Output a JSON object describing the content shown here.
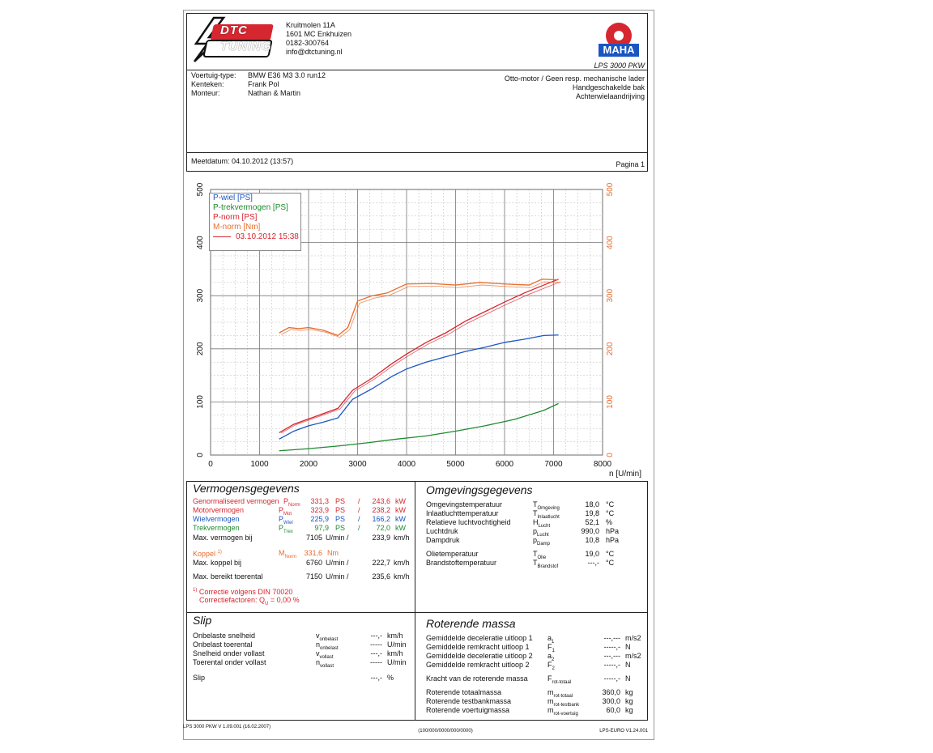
{
  "header": {
    "logo_text": "DTC TUNING",
    "address_lines": [
      "Kruitmolen 11A",
      "1601 MC Enkhuizen",
      "0182-300764",
      "info@dtctuning.nl"
    ],
    "maha_logo_text": "MAHA",
    "model": "LPS 3000 PKW"
  },
  "vehicle": {
    "type_label": "Voertuig-type:",
    "type_value": "BMW E36 M3 3.0 run12",
    "plate_label": "Kenteken:",
    "plate_value": "Frank Pol",
    "mechanic_label": "Monteur:",
    "mechanic_value": "Nathan & Martin",
    "right_lines": [
      "Otto-motor / Geen resp. mechanische lader",
      "Handgeschakelde bak",
      "Achterwielaandrijving"
    ]
  },
  "measure": {
    "date_label": "Meetdatum: 04.10.2012 (13:57)",
    "page_label": "Pagina 1"
  },
  "chart_data": {
    "type": "line",
    "xlabel": "n [U/min]",
    "xlim": [
      0,
      8000
    ],
    "ylim": [
      0,
      500
    ],
    "x_ticks": [
      0,
      1000,
      2000,
      3000,
      4000,
      5000,
      6000,
      7000,
      8000
    ],
    "y_ticks": [
      0,
      100,
      200,
      300,
      400,
      500
    ],
    "grid": true,
    "legend_placement": "top-left",
    "legend": [
      "P-wiel [PS]",
      "P-trekvermogen [PS]",
      "P-norm [PS]",
      "M-norm [Nm]"
    ],
    "legend_date": "03.10.2012 15:38",
    "series": [
      {
        "name": "P-wiel [PS]",
        "color": "#1a56c2",
        "x": [
          1400,
          1700,
          2000,
          2300,
          2600,
          2900,
          3300,
          3700,
          4000,
          4400,
          4800,
          5200,
          5600,
          6000,
          6400,
          6800,
          7100
        ],
        "values": [
          30,
          45,
          55,
          62,
          70,
          105,
          125,
          148,
          162,
          175,
          185,
          195,
          203,
          212,
          218,
          225,
          226
        ]
      },
      {
        "name": "P-trekvermogen [PS]",
        "color": "#1f8a2e",
        "x": [
          1400,
          2000,
          2600,
          3200,
          3800,
          4400,
          5000,
          5600,
          6200,
          6800,
          7100
        ],
        "values": [
          8,
          12,
          17,
          23,
          30,
          36,
          45,
          55,
          67,
          84,
          97
        ]
      },
      {
        "name": "P-norm [PS]",
        "color": "#d6262f",
        "x": [
          1400,
          1700,
          2000,
          2300,
          2600,
          2900,
          3300,
          3700,
          4000,
          4400,
          4800,
          5200,
          5600,
          6000,
          6400,
          6800,
          7100
        ],
        "values": [
          42,
          58,
          68,
          78,
          88,
          122,
          145,
          172,
          190,
          212,
          230,
          252,
          270,
          288,
          305,
          320,
          331
        ]
      },
      {
        "name": "M-norm [Nm]",
        "color": "#e86b2c",
        "x": [
          1400,
          1600,
          1800,
          2000,
          2300,
          2600,
          2800,
          3000,
          3300,
          3600,
          4000,
          4500,
          5000,
          5500,
          6000,
          6500,
          6760,
          7100
        ],
        "values": [
          230,
          240,
          238,
          240,
          235,
          225,
          240,
          290,
          300,
          305,
          322,
          323,
          320,
          325,
          322,
          320,
          331,
          330
        ]
      }
    ]
  },
  "vermogen": {
    "title": "Vermogensgegevens",
    "rows": [
      {
        "label": "Genormaliseerd vermogen",
        "sym": "P",
        "sub": "Norm",
        "v1": "331,3",
        "u1": "PS",
        "sep": "/",
        "v2": "243,6",
        "u2": "kW",
        "cls": "red"
      },
      {
        "label": "Motorvermogen",
        "sym": "P",
        "sub": "Mot",
        "v1": "323,9",
        "u1": "PS",
        "sep": "/",
        "v2": "238,2",
        "u2": "kW",
        "cls": "red"
      },
      {
        "label": "Wielvermogen",
        "sym": "P",
        "sub": "Wiel",
        "v1": "225,9",
        "u1": "PS",
        "sep": "/",
        "v2": "166,2",
        "u2": "kW",
        "cls": "blue"
      },
      {
        "label": "Trekvermogen",
        "sym": "P",
        "sub": "Trex",
        "v1": "97,9",
        "u1": "PS",
        "sep": "/",
        "v2": "72,0",
        "u2": "kW",
        "cls": "green"
      }
    ],
    "max_power_at": {
      "label": "Max. vermogen bij",
      "v1": "7105",
      "u1": "U/min /",
      "v2": "233,9",
      "u2": "km/h"
    },
    "koppel": {
      "label": "Koppel",
      "note": "1)",
      "sym": "M",
      "sub": "Norm",
      "v": "331,6",
      "u": "Nm"
    },
    "max_torque_at": {
      "label": "Max. koppel bij",
      "v1": "6760",
      "u1": "U/min /",
      "v2": "222,7",
      "u2": "km/h"
    },
    "max_rpm": {
      "label": "Max. bereikt toerental",
      "v1": "7150",
      "u1": "U/min /",
      "v2": "235,6",
      "u2": "km/h"
    },
    "correction_note": "1)",
    "correction": "Correctie volgens DIN 70020",
    "factor_label": "Correctiefactoren: Q",
    "factor_sub": "U",
    "factor_value": "= 0,00 %"
  },
  "omgeving": {
    "title": "Omgevingsgegevens",
    "rows": [
      {
        "label": "Omgevingstemperatuur",
        "sym": "T",
        "sub": "Omgeving",
        "v": "18,0",
        "u": "°C"
      },
      {
        "label": "Inlaatluchttemperatuur",
        "sym": "T",
        "sub": "Inlaatlucht",
        "v": "19,8",
        "u": "°C"
      },
      {
        "label": "Relatieve luchtvochtigheid",
        "sym": "H",
        "sub": "Lucht",
        "v": "52,1",
        "u": "%"
      },
      {
        "label": "Luchtdruk",
        "sym": "p",
        "sub": "Lucht",
        "v": "990,0",
        "u": "hPa"
      },
      {
        "label": "Dampdruk",
        "sym": "p",
        "sub": "Damp",
        "v": "10,8",
        "u": "hPa"
      },
      {
        "label": "Olietemperatuur",
        "sym": "T",
        "sub": "Olie",
        "v": "19,0",
        "u": "°C"
      },
      {
        "label": "Brandstoftemperatuur",
        "sym": "T",
        "sub": "Brandstof",
        "v": "---,-",
        "u": "°C"
      }
    ]
  },
  "slip": {
    "title": "Slip",
    "rows": [
      {
        "label": "Onbelaste snelheid",
        "sym": "v",
        "sub": "onbelast",
        "v": "---,-",
        "u": "km/h"
      },
      {
        "label": "Onbelast toerental",
        "sym": "n",
        "sub": "onbelast",
        "v": "-----",
        "u": "U/min"
      },
      {
        "label": "Snelheid onder vollast",
        "sym": "v",
        "sub": "vollast",
        "v": "---,-",
        "u": "km/h"
      },
      {
        "label": "Toerental onder vollast",
        "sym": "n",
        "sub": "vollast",
        "v": "-----",
        "u": "U/min"
      },
      {
        "label": "Slip",
        "sym": "",
        "sub": "",
        "v": "---,-",
        "u": "%"
      }
    ]
  },
  "massa": {
    "title": "Roterende massa",
    "rows": [
      {
        "label": "Gemiddelde deceleratie uitloop 1",
        "sym": "a",
        "sub": "1",
        "v": "---,---",
        "u": "m/s2"
      },
      {
        "label": "Gemiddelde remkracht uitloop 1",
        "sym": "F",
        "sub": "1",
        "v": "-----,-",
        "u": "N"
      },
      {
        "label": "Gemiddelde deceleratie uitloop 2",
        "sym": "a",
        "sub": "2",
        "v": "---,---",
        "u": "m/s2"
      },
      {
        "label": "Gemiddelde remkracht uitloop 2",
        "sym": "F",
        "sub": "2",
        "v": "-----,-",
        "u": "N"
      },
      {
        "label": "Kracht van de roterende massa",
        "sym": "F",
        "sub": "rot-totaal",
        "v": "-----,-",
        "u": "N"
      },
      {
        "label": "Roterende totaalmassa",
        "sym": "m",
        "sub": "rot-totaal",
        "v": "360,0",
        "u": "kg"
      },
      {
        "label": "Roterende testbankmassa",
        "sym": "m",
        "sub": "rot-testbank",
        "v": "300,0",
        "u": "kg"
      },
      {
        "label": "Roterende voertuigmassa",
        "sym": "m",
        "sub": "rot-voertuig",
        "v": "60,0",
        "u": "kg"
      }
    ]
  },
  "footer": {
    "left": "LPS 3000 PKW V 1.09.001 (16.02.2007)",
    "center": "(100/000/0000/000/0000)",
    "right": "LPS-EURO V1.24.001"
  }
}
